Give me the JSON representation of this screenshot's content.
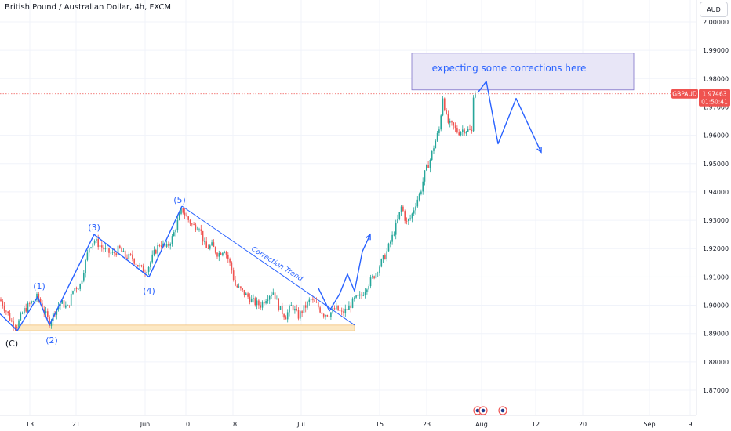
{
  "header": {
    "title": "British Pound / Australian Dollar, 4h, FXCM",
    "currency": "AUD"
  },
  "price_badge": {
    "symbol": "GBPAUD",
    "price": "1.97463",
    "countdown": "01:50:41"
  },
  "annotations": {
    "note": "expecting some corrections here",
    "trend_label": "Correction Trend",
    "waves": [
      "(C)",
      "(1)",
      "(2)",
      "(3)",
      "(4)",
      "(5)"
    ]
  },
  "colors": {
    "up": "#26a69a",
    "down": "#ef5350",
    "drawing": "#2962ff",
    "support_zone": "#fce8c4",
    "target_zone": "#e8e6f7",
    "price_line": "#ef5350"
  },
  "chart_data": {
    "type": "candlestick",
    "title": "British Pound / Australian Dollar, 4h, FXCM",
    "ylim": [
      1.865,
      2.004
    ],
    "y_ticks": [
      "2.00000",
      "1.99000",
      "1.98000",
      "1.97000",
      "1.96000",
      "1.95000",
      "1.94000",
      "1.93000",
      "1.92000",
      "1.91000",
      "1.90000",
      "1.89000",
      "1.88000",
      "1.87000"
    ],
    "x_ticks": [
      "13",
      "21",
      "Jun",
      "10",
      "18",
      "Jul",
      "15",
      "23",
      "Aug",
      "12",
      "20",
      "Sep",
      "9"
    ],
    "last_price": 1.97463,
    "price_path": [
      [
        0,
        1.902
      ],
      [
        8,
        1.898
      ],
      [
        15,
        1.894
      ],
      [
        22,
        1.893
      ],
      [
        30,
        1.898
      ],
      [
        40,
        1.901
      ],
      [
        48,
        1.903
      ],
      [
        56,
        1.898
      ],
      [
        63,
        1.894
      ],
      [
        70,
        1.898
      ],
      [
        78,
        1.901
      ],
      [
        86,
        1.899
      ],
      [
        94,
        1.906
      ],
      [
        102,
        1.907
      ],
      [
        108,
        1.914
      ],
      [
        114,
        1.921
      ],
      [
        120,
        1.923
      ],
      [
        128,
        1.921
      ],
      [
        136,
        1.919
      ],
      [
        144,
        1.918
      ],
      [
        152,
        1.92
      ],
      [
        160,
        1.917
      ],
      [
        168,
        1.917
      ],
      [
        176,
        1.914
      ],
      [
        184,
        1.912
      ],
      [
        190,
        1.914
      ],
      [
        196,
        1.918
      ],
      [
        204,
        1.922
      ],
      [
        212,
        1.92
      ],
      [
        220,
        1.924
      ],
      [
        226,
        1.929
      ],
      [
        232,
        1.934
      ],
      [
        238,
        1.931
      ],
      [
        246,
        1.928
      ],
      [
        254,
        1.928
      ],
      [
        262,
        1.92
      ],
      [
        270,
        1.921
      ],
      [
        278,
        1.918
      ],
      [
        286,
        1.92
      ],
      [
        294,
        1.914
      ],
      [
        300,
        1.907
      ],
      [
        308,
        1.905
      ],
      [
        316,
        1.903
      ],
      [
        324,
        1.901
      ],
      [
        332,
        1.9
      ],
      [
        340,
        1.903
      ],
      [
        348,
        1.905
      ],
      [
        356,
        1.899
      ],
      [
        364,
        1.896
      ],
      [
        372,
        1.9
      ],
      [
        380,
        1.896
      ],
      [
        388,
        1.899
      ],
      [
        396,
        1.902
      ],
      [
        404,
        1.9
      ],
      [
        412,
        1.897
      ],
      [
        420,
        1.897
      ],
      [
        428,
        1.899
      ],
      [
        436,
        1.897
      ],
      [
        444,
        1.899
      ],
      [
        452,
        1.902
      ],
      [
        460,
        1.903
      ],
      [
        468,
        1.907
      ],
      [
        476,
        1.91
      ],
      [
        484,
        1.914
      ],
      [
        492,
        1.918
      ],
      [
        500,
        1.924
      ],
      [
        506,
        1.929
      ],
      [
        512,
        1.935
      ],
      [
        518,
        1.929
      ],
      [
        524,
        1.931
      ],
      [
        530,
        1.936
      ],
      [
        536,
        1.94
      ],
      [
        542,
        1.947
      ],
      [
        548,
        1.951
      ],
      [
        554,
        1.957
      ],
      [
        560,
        1.962
      ],
      [
        565,
        1.975
      ],
      [
        568,
        1.967
      ],
      [
        572,
        1.964
      ],
      [
        578,
        1.963
      ],
      [
        584,
        1.961
      ],
      [
        590,
        1.962
      ],
      [
        596,
        1.962
      ],
      [
        602,
        1.961
      ],
      [
        604,
        1.978
      ],
      [
        606,
        1.975
      ]
    ],
    "projection_up": [
      [
        406,
        1.906
      ],
      [
        420,
        1.898
      ],
      [
        433,
        1.904
      ],
      [
        443,
        1.911
      ],
      [
        452,
        1.905
      ],
      [
        462,
        1.919
      ],
      [
        472,
        1.925
      ]
    ],
    "projection_down": [
      [
        609,
        1.975
      ],
      [
        620,
        1.979
      ],
      [
        635,
        1.957
      ],
      [
        658,
        1.973
      ],
      [
        690,
        1.954
      ]
    ],
    "target_zone": {
      "x_from": 525,
      "x_to": 808,
      "y_from": 1.976,
      "y_to": 1.989
    },
    "support_zone": {
      "x_from": 20,
      "x_to": 452,
      "y_from": 1.891,
      "y_to": 1.893
    },
    "trendline": {
      "from": [
        232,
        1.935
      ],
      "to": [
        452,
        1.893
      ]
    },
    "wave_lines": [
      [
        0,
        1.897
      ],
      [
        22,
        1.891
      ],
      [
        48,
        1.903
      ],
      [
        63,
        1.893
      ],
      [
        120,
        1.925
      ],
      [
        190,
        1.91
      ],
      [
        232,
        1.935
      ]
    ]
  }
}
